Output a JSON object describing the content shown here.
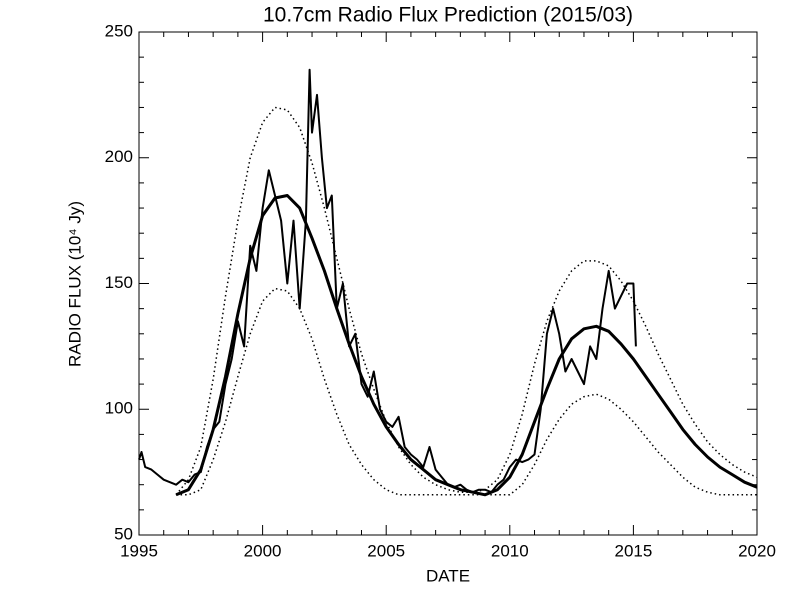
{
  "chart_data": {
    "type": "line",
    "title": "10.7cm Radio Flux Prediction (2015/03)",
    "x_label": "DATE",
    "y_label": "RADIO FLUX (10⁴ Jy)",
    "xlim": [
      1995,
      2020
    ],
    "xticks": [
      1995,
      2000,
      2005,
      2010,
      2015,
      2020
    ],
    "ylim": [
      50,
      250
    ],
    "yticks": [
      50,
      100,
      150,
      200,
      250
    ],
    "series": [
      {
        "color": "#000000",
        "style": "solid",
        "width": 2,
        "x": [
          1995.0,
          1995.1,
          1995.25,
          1995.5,
          1995.75,
          1996.0,
          1996.25,
          1996.5,
          1996.75,
          1997.0,
          1997.25,
          1997.5,
          1997.75,
          1998.0,
          1998.25,
          1998.5,
          1998.75,
          1999.0,
          1999.25,
          1999.5,
          1999.75,
          2000.0,
          2000.25,
          2000.5,
          2000.75,
          2001.0,
          2001.25,
          2001.5,
          2001.75,
          2001.9,
          2002.0,
          2002.2,
          2002.4,
          2002.6,
          2002.8,
          2003.0,
          2003.25,
          2003.5,
          2003.75,
          2004.0,
          2004.25,
          2004.5,
          2004.75,
          2005.0,
          2005.25,
          2005.5,
          2005.75,
          2006.0,
          2006.25,
          2006.5,
          2006.75,
          2007.0,
          2007.25,
          2007.5,
          2007.75,
          2008.0,
          2008.25,
          2008.5,
          2008.75,
          2009.0,
          2009.25,
          2009.5,
          2009.75,
          2010.0,
          2010.25,
          2010.5,
          2010.75,
          2011.0,
          2011.25,
          2011.5,
          2011.75,
          2012.0,
          2012.25,
          2012.5,
          2012.75,
          2013.0,
          2013.25,
          2013.5,
          2013.75,
          2014.0,
          2014.25,
          2014.5,
          2014.75,
          2015.0,
          2015.1
        ],
        "values": [
          80,
          83,
          77,
          76,
          74,
          72,
          71,
          70,
          72,
          71,
          74,
          75,
          85,
          92,
          95,
          110,
          120,
          135,
          125,
          165,
          155,
          180,
          195,
          185,
          175,
          150,
          175,
          140,
          175,
          235,
          210,
          225,
          200,
          180,
          185,
          140,
          150,
          125,
          130,
          110,
          105,
          115,
          100,
          95,
          93,
          97,
          85,
          82,
          80,
          77,
          85,
          76,
          73,
          70,
          69,
          70,
          68,
          67,
          68,
          68,
          67,
          70,
          72,
          77,
          80,
          79,
          80,
          82,
          100,
          130,
          140,
          130,
          115,
          120,
          115,
          110,
          125,
          120,
          140,
          155,
          140,
          145,
          150,
          150,
          125
        ]
      },
      {
        "color": "#000000",
        "style": "solid",
        "width": 3,
        "x": [
          1996.5,
          1997,
          1997.5,
          1998,
          1998.5,
          1999,
          1999.5,
          2000,
          2000.5,
          2001,
          2001.5,
          2002,
          2002.5,
          2003,
          2003.5,
          2004,
          2004.5,
          2005,
          2005.5,
          2006,
          2006.5,
          2007,
          2007.5,
          2008,
          2008.5,
          2009,
          2009.5,
          2010,
          2010.5,
          2011,
          2011.5,
          2012,
          2012.5,
          2013,
          2013.5,
          2014,
          2014.5,
          2015,
          2015.5,
          2016,
          2016.5,
          2017,
          2017.5,
          2018,
          2018.5,
          2019,
          2019.5,
          2020
        ],
        "values": [
          66,
          68,
          76,
          92,
          113,
          138,
          160,
          177,
          184,
          185,
          180,
          168,
          155,
          140,
          126,
          113,
          102,
          93,
          86,
          80,
          76,
          72,
          70,
          68,
          67,
          66,
          68,
          73,
          82,
          95,
          108,
          120,
          128,
          132,
          133,
          131,
          126,
          120,
          113,
          106,
          99,
          92,
          86,
          81,
          77,
          74,
          71,
          69
        ]
      },
      {
        "color": "#000000",
        "style": "dotted",
        "width": 1.5,
        "x": [
          1996.5,
          1997,
          1997.5,
          1998,
          1998.5,
          1999,
          1999.5,
          2000,
          2000.5,
          2001,
          2001.5,
          2002,
          2002.5,
          2003,
          2003.5,
          2004,
          2004.5,
          2005,
          2005.5,
          2006,
          2006.5,
          2007,
          2007.5,
          2008,
          2008.5,
          2009,
          2009.5,
          2010,
          2010.5,
          2011,
          2011.5,
          2012,
          2012.5,
          2013,
          2013.5,
          2014,
          2014.5,
          2015,
          2015.5,
          2016,
          2016.5,
          2017,
          2017.5,
          2018,
          2018.5,
          2019,
          2019.5,
          2020
        ],
        "values": [
          66,
          72,
          85,
          112,
          145,
          175,
          200,
          214,
          220,
          219,
          212,
          198,
          180,
          160,
          140,
          122,
          108,
          95,
          85,
          78,
          73,
          70,
          68,
          67,
          67,
          68,
          72,
          82,
          98,
          118,
          135,
          147,
          155,
          159,
          159,
          157,
          151,
          143,
          133,
          122,
          112,
          102,
          94,
          87,
          82,
          78,
          75,
          73
        ]
      },
      {
        "color": "#000000",
        "style": "dotted",
        "width": 1.5,
        "x": [
          1996.5,
          1997,
          1997.5,
          1998,
          1998.5,
          1999,
          1999.5,
          2000,
          2000.5,
          2001,
          2001.5,
          2002,
          2002.5,
          2003,
          2003.5,
          2004,
          2004.5,
          2005,
          2005.5,
          2006,
          2006.5,
          2007,
          2007.5,
          2008,
          2008.5,
          2009,
          2009.5,
          2010,
          2010.5,
          2011,
          2011.5,
          2012,
          2012.5,
          2013,
          2013.5,
          2014,
          2014.5,
          2015,
          2015.5,
          2016,
          2016.5,
          2017,
          2017.5,
          2018,
          2018.5,
          2019,
          2019.5,
          2020
        ],
        "values": [
          66,
          66,
          68,
          80,
          95,
          113,
          130,
          143,
          148,
          147,
          140,
          128,
          112,
          98,
          86,
          78,
          72,
          68,
          66,
          66,
          66,
          66,
          66,
          66,
          66,
          66,
          66,
          66,
          70,
          78,
          88,
          96,
          102,
          105,
          106,
          104,
          100,
          95,
          89,
          83,
          78,
          73,
          69,
          67,
          66,
          66,
          66,
          66
        ]
      }
    ]
  }
}
